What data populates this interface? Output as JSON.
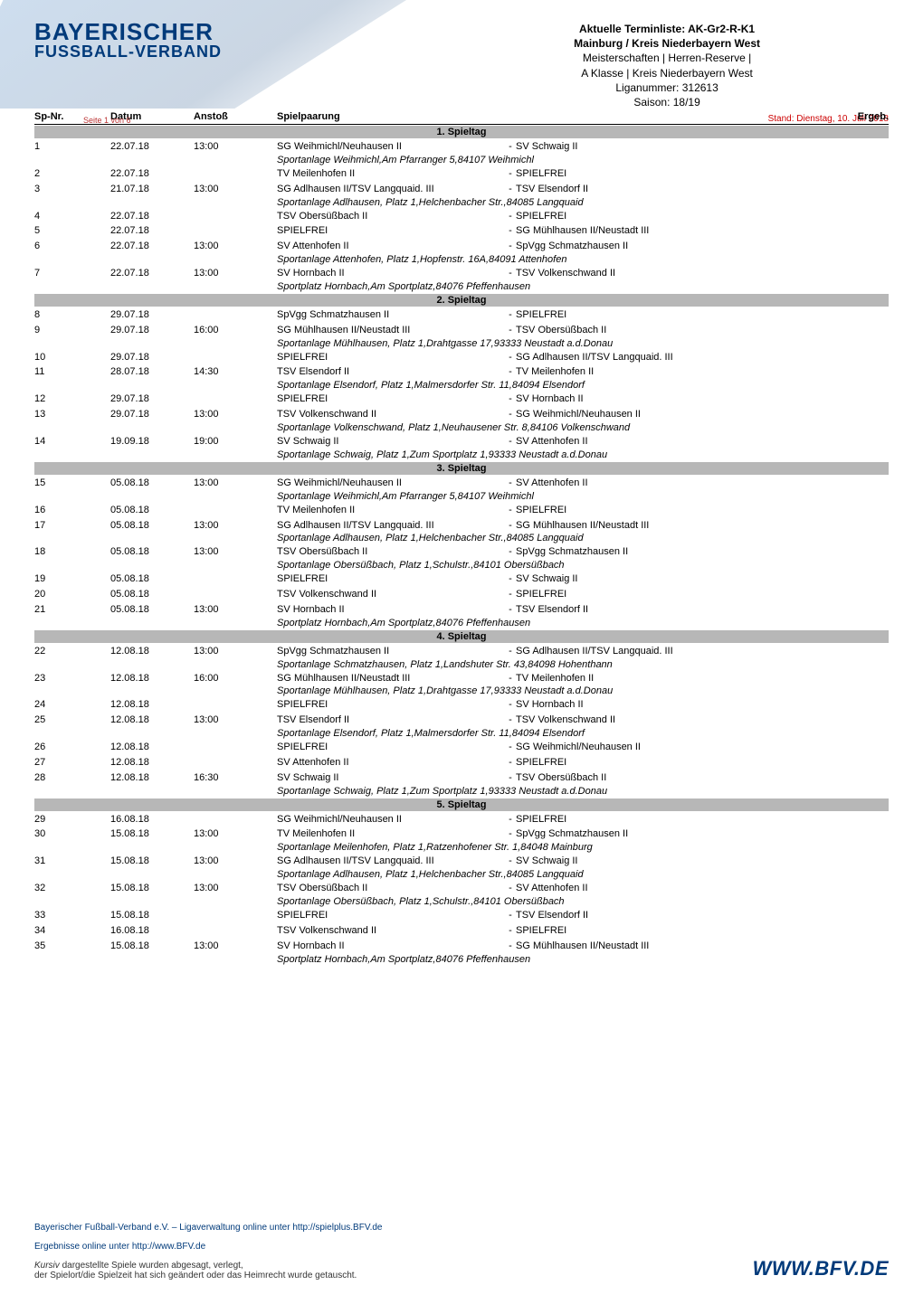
{
  "logo": {
    "line1": "BAYERISCHER",
    "line2": "FUSSBALL-VERBAND"
  },
  "title": {
    "l1": "Aktuelle Terminliste: AK-Gr2-R-K1",
    "l2": "Mainburg / Kreis Niederbayern West",
    "l3": "Meisterschaften | Herren-Reserve |",
    "l4": "A Klasse | Kreis Niederbayern West",
    "l5": "Liganummer: 312613",
    "l6": "Saison: 18/19"
  },
  "stand": "Stand: Dienstag, 10. Juli 2018",
  "page_note": "Seite 1 von 6",
  "cols": {
    "nr": "Sp-Nr.",
    "date": "Datum",
    "time": "Anstoß",
    "pair": "Spielpaarung",
    "erg": "Ergeb."
  },
  "days": [
    {
      "label": "1. Spieltag",
      "rows": [
        {
          "nr": "1",
          "date": "22.07.18",
          "time": "13:00",
          "home": "SG Weihmichl/Neuhausen II",
          "away": "SV Schwaig II",
          "venue": "Sportanlage Weihmichl,Am Pfarranger 5,84107 Weihmichl"
        },
        {
          "nr": "2",
          "date": "22.07.18",
          "time": "",
          "home": "TV Meilenhofen II",
          "away": "SPIELFREI"
        },
        {
          "nr": "3",
          "date": "21.07.18",
          "time": "13:00",
          "home": "SG Adlhausen II/TSV Langquaid. III",
          "away": "TSV Elsendorf II",
          "venue": "Sportanlage Adlhausen, Platz 1,Helchenbacher Str.,84085 Langquaid"
        },
        {
          "nr": "4",
          "date": "22.07.18",
          "time": "",
          "home": "TSV Obersüßbach II",
          "away": "SPIELFREI"
        },
        {
          "nr": "5",
          "date": "22.07.18",
          "time": "",
          "home": "SPIELFREI",
          "away": "SG Mühlhausen II/Neustadt III"
        },
        {
          "nr": "6",
          "date": "22.07.18",
          "time": "13:00",
          "home": "SV Attenhofen II",
          "away": "SpVgg Schmatzhausen II",
          "venue": "Sportanlage Attenhofen, Platz 1,Hopfenstr. 16A,84091 Attenhofen"
        },
        {
          "nr": "7",
          "date": "22.07.18",
          "time": "13:00",
          "home": "SV Hornbach II",
          "away": "TSV Volkenschwand II",
          "venue": "Sportplatz Hornbach,Am Sportplatz,84076 Pfeffenhausen"
        }
      ]
    },
    {
      "label": "2. Spieltag",
      "rows": [
        {
          "nr": "8",
          "date": "29.07.18",
          "time": "",
          "home": "SpVgg Schmatzhausen II",
          "away": "SPIELFREI"
        },
        {
          "nr": "9",
          "date": "29.07.18",
          "time": "16:00",
          "home": "SG Mühlhausen II/Neustadt III",
          "away": "TSV Obersüßbach II",
          "venue": "Sportanlage Mühlhausen, Platz 1,Drahtgasse 17,93333 Neustadt a.d.Donau"
        },
        {
          "nr": "10",
          "date": "29.07.18",
          "time": "",
          "home": "SPIELFREI",
          "away": "SG Adlhausen II/TSV Langquaid. III"
        },
        {
          "nr": "11",
          "date": "28.07.18",
          "time": "14:30",
          "home": "TSV Elsendorf II",
          "away": "TV Meilenhofen II",
          "venue": "Sportanlage Elsendorf, Platz 1,Malmersdorfer Str. 11,84094 Elsendorf"
        },
        {
          "nr": "12",
          "date": "29.07.18",
          "time": "",
          "home": "SPIELFREI",
          "away": "SV Hornbach II"
        },
        {
          "nr": "13",
          "date": "29.07.18",
          "time": "13:00",
          "home": "TSV Volkenschwand II",
          "away": "SG Weihmichl/Neuhausen II",
          "venue": "Sportanlage Volkenschwand, Platz 1,Neuhausener Str. 8,84106 Volkenschwand"
        },
        {
          "nr": "14",
          "date": "19.09.18",
          "time": "19:00",
          "home": "SV Schwaig II",
          "away": "SV Attenhofen II",
          "venue": "Sportanlage Schwaig, Platz 1,Zum Sportplatz 1,93333 Neustadt a.d.Donau"
        }
      ]
    },
    {
      "label": "3. Spieltag",
      "rows": [
        {
          "nr": "15",
          "date": "05.08.18",
          "time": "13:00",
          "home": "SG Weihmichl/Neuhausen II",
          "away": "SV Attenhofen II",
          "venue": "Sportanlage Weihmichl,Am Pfarranger 5,84107 Weihmichl"
        },
        {
          "nr": "16",
          "date": "05.08.18",
          "time": "",
          "home": "TV Meilenhofen II",
          "away": "SPIELFREI"
        },
        {
          "nr": "17",
          "date": "05.08.18",
          "time": "13:00",
          "home": "SG Adlhausen II/TSV Langquaid. III",
          "away": "SG Mühlhausen II/Neustadt III",
          "venue": "Sportanlage Adlhausen, Platz 1,Helchenbacher Str.,84085 Langquaid"
        },
        {
          "nr": "18",
          "date": "05.08.18",
          "time": "13:00",
          "home": "TSV Obersüßbach II",
          "away": "SpVgg Schmatzhausen II",
          "venue": "Sportanlage Obersüßbach, Platz 1,Schulstr.,84101 Obersüßbach"
        },
        {
          "nr": "19",
          "date": "05.08.18",
          "time": "",
          "home": "SPIELFREI",
          "away": "SV Schwaig II"
        },
        {
          "nr": "20",
          "date": "05.08.18",
          "time": "",
          "home": "TSV Volkenschwand II",
          "away": "SPIELFREI"
        },
        {
          "nr": "21",
          "date": "05.08.18",
          "time": "13:00",
          "home": "SV Hornbach II",
          "away": "TSV Elsendorf II",
          "venue": "Sportplatz Hornbach,Am Sportplatz,84076 Pfeffenhausen"
        }
      ]
    },
    {
      "label": "4. Spieltag",
      "rows": [
        {
          "nr": "22",
          "date": "12.08.18",
          "time": "13:00",
          "home": "SpVgg Schmatzhausen II",
          "away": "SG Adlhausen II/TSV Langquaid. III",
          "venue": "Sportanlage Schmatzhausen, Platz 1,Landshuter Str. 43,84098 Hohenthann"
        },
        {
          "nr": "23",
          "date": "12.08.18",
          "time": "16:00",
          "home": "SG Mühlhausen II/Neustadt III",
          "away": "TV Meilenhofen II",
          "venue": "Sportanlage Mühlhausen, Platz 1,Drahtgasse 17,93333 Neustadt a.d.Donau"
        },
        {
          "nr": "24",
          "date": "12.08.18",
          "time": "",
          "home": "SPIELFREI",
          "away": "SV Hornbach II"
        },
        {
          "nr": "25",
          "date": "12.08.18",
          "time": "13:00",
          "home": "TSV Elsendorf II",
          "away": "TSV Volkenschwand II",
          "venue": "Sportanlage Elsendorf, Platz 1,Malmersdorfer Str. 11,84094 Elsendorf"
        },
        {
          "nr": "26",
          "date": "12.08.18",
          "time": "",
          "home": "SPIELFREI",
          "away": "SG Weihmichl/Neuhausen II"
        },
        {
          "nr": "27",
          "date": "12.08.18",
          "time": "",
          "home": "SV Attenhofen II",
          "away": "SPIELFREI"
        },
        {
          "nr": "28",
          "date": "12.08.18",
          "time": "16:30",
          "home": "SV Schwaig II",
          "away": "TSV Obersüßbach II",
          "venue": "Sportanlage Schwaig, Platz 1,Zum Sportplatz 1,93333 Neustadt a.d.Donau"
        }
      ]
    },
    {
      "label": "5. Spieltag",
      "rows": [
        {
          "nr": "29",
          "date": "16.08.18",
          "time": "",
          "home": "SG Weihmichl/Neuhausen II",
          "away": "SPIELFREI"
        },
        {
          "nr": "30",
          "date": "15.08.18",
          "time": "13:00",
          "home": "TV Meilenhofen II",
          "away": "SpVgg Schmatzhausen II",
          "venue": "Sportanlage Meilenhofen, Platz 1,Ratzenhofener Str. 1,84048 Mainburg"
        },
        {
          "nr": "31",
          "date": "15.08.18",
          "time": "13:00",
          "home": "SG Adlhausen II/TSV Langquaid. III",
          "away": "SV Schwaig II",
          "venue": "Sportanlage Adlhausen, Platz 1,Helchenbacher Str.,84085 Langquaid"
        },
        {
          "nr": "32",
          "date": "15.08.18",
          "time": "13:00",
          "home": "TSV Obersüßbach II",
          "away": "SV Attenhofen II",
          "venue": "Sportanlage Obersüßbach, Platz 1,Schulstr.,84101 Obersüßbach"
        },
        {
          "nr": "33",
          "date": "15.08.18",
          "time": "",
          "home": "SPIELFREI",
          "away": "TSV Elsendorf II"
        },
        {
          "nr": "34",
          "date": "16.08.18",
          "time": "",
          "home": "TSV Volkenschwand II",
          "away": "SPIELFREI"
        },
        {
          "nr": "35",
          "date": "15.08.18",
          "time": "13:00",
          "home": "SV Hornbach II",
          "away": "SG Mühlhausen II/Neustadt III",
          "venue": "Sportplatz Hornbach,Am Sportplatz,84076 Pfeffenhausen"
        }
      ]
    }
  ],
  "footer": {
    "l1": "Bayerischer Fußball-Verband e.V. – Ligaverwaltung online unter http://spielplus.BFV.de",
    "l2": "Ergebnisse online unter http://www.BFV.de",
    "l3a": "Kursiv",
    "l3b": " dargestellte Spiele wurden abgesagt, verlegt,",
    "l4": "der Spielort/die Spielzeit hat sich geändert oder das Heimrecht wurde getauscht.",
    "url": "WWW.BFV.DE"
  },
  "styling": {
    "brand_color": "#003a7a",
    "daybar_bg": "#b7b7b7",
    "stand_color": "#c00",
    "font_size_body": 11,
    "font_size_logo1": 26,
    "font_size_logo2": 18,
    "font_size_url": 22
  }
}
